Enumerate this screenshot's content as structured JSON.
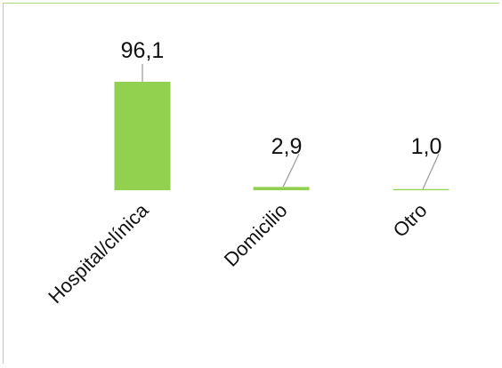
{
  "chart_data": {
    "type": "bar",
    "categories": [
      "Hospital/clínica",
      "Domicilio",
      "Otro"
    ],
    "values": [
      96.1,
      2.9,
      1.0
    ],
    "data_labels": [
      "96,1",
      "2,9",
      "1,0"
    ],
    "title": "",
    "xlabel": "",
    "ylabel": "",
    "ylim": [
      0,
      100
    ],
    "grid": false,
    "legend": "none",
    "colors": {
      "bar": "#92d050",
      "frame": "#92d050",
      "leader": "#9a9a9a"
    }
  }
}
